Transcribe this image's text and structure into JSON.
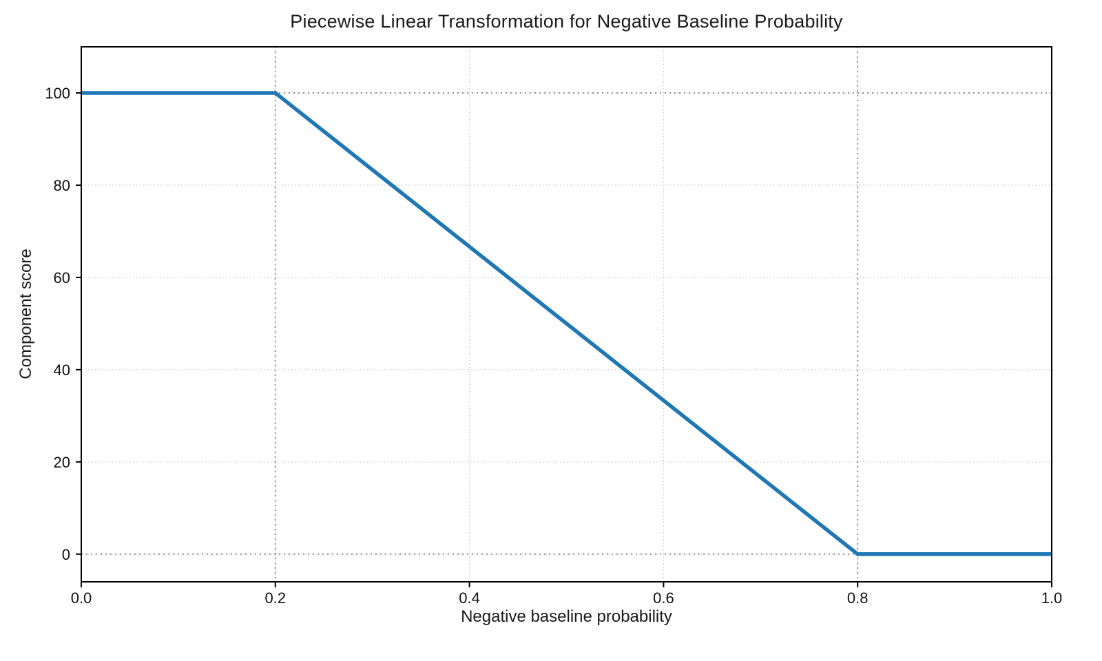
{
  "chart_data": {
    "type": "line",
    "title": "Piecewise Linear Transformation for Negative Baseline Probability",
    "xlabel": "Negative baseline probability",
    "ylabel": "Component score",
    "x": [
      0.0,
      0.2,
      0.8,
      1.0
    ],
    "y": [
      100,
      100,
      0,
      0
    ],
    "xlim": [
      0.0,
      1.0
    ],
    "ylim": [
      -6,
      110
    ],
    "xticks": [
      0.0,
      0.2,
      0.4,
      0.6,
      0.8,
      1.0
    ],
    "xtick_labels": [
      "0.0",
      "0.2",
      "0.4",
      "0.6",
      "0.8",
      "1.0"
    ],
    "yticks": [
      0,
      20,
      40,
      60,
      80,
      100
    ],
    "ytick_labels": [
      "0",
      "20",
      "40",
      "60",
      "80",
      "100"
    ],
    "line_color": "#1f77b4",
    "grid": true,
    "legend_position": "none",
    "highlight_lines": {
      "x": [
        0.2,
        0.8
      ],
      "y": [
        0,
        100
      ]
    },
    "breakpoints": [
      [
        0.2,
        100
      ],
      [
        0.8,
        0
      ]
    ]
  }
}
